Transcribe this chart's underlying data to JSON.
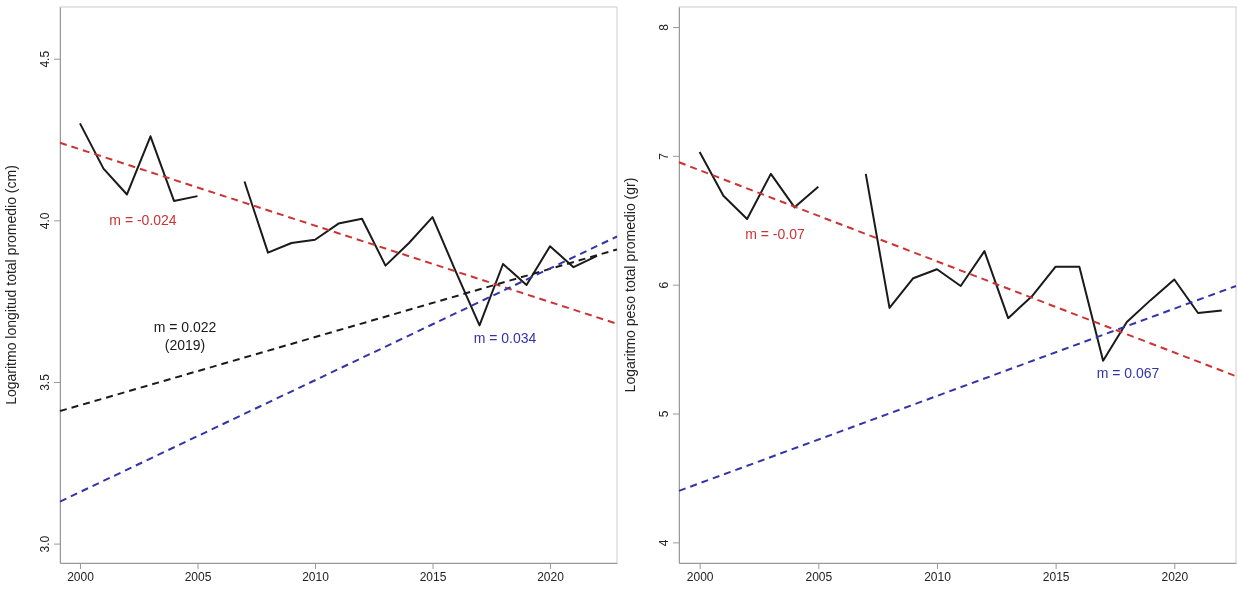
{
  "chart_data": [
    {
      "type": "line",
      "ylabel": "Logaritmo longitud total promedio (cm)",
      "x": [
        2000,
        2001,
        2002,
        2003,
        2004,
        2005,
        2006,
        2007,
        2008,
        2009,
        2010,
        2011,
        2012,
        2013,
        2014,
        2015,
        2016,
        2017,
        2018,
        2019,
        2020,
        2021,
        2022
      ],
      "series": [
        {
          "color": "#1a1a1a",
          "line_style": "solid",
          "values": [
            4.3,
            4.16,
            4.08,
            4.26,
            4.06,
            4.075,
            null,
            4.12,
            3.9,
            3.93,
            3.94,
            3.99,
            4.005,
            3.86,
            3.93,
            4.01,
            3.84,
            3.675,
            3.865,
            3.8,
            3.92,
            3.855,
            3.89
          ]
        },
        {
          "color": "#cc3333",
          "line_style": "dashed",
          "x": [
            1999.15,
            2022.85
          ],
          "values": [
            4.24,
            3.68
          ]
        },
        {
          "color": "#1a1a1a",
          "line_style": "dashed",
          "x": [
            1999.15,
            2022.85
          ],
          "values": [
            3.41,
            3.91
          ]
        },
        {
          "color": "#3333aa",
          "line_style": "dashed",
          "x": [
            1999.15,
            2022.85
          ],
          "values": [
            3.13,
            3.95
          ]
        }
      ],
      "annotations": [
        "m = -0.024",
        "m = 0.022\n(2019)",
        "m = 0.034"
      ],
      "xlim": [
        1999.15,
        2022.85
      ],
      "xticks": [
        2000,
        2005,
        2010,
        2015,
        2020
      ],
      "ylim": [
        2.94,
        4.66
      ],
      "yticks": [
        {
          "value": 3,
          "label": "3.0"
        },
        {
          "value": 3.5,
          "label": "3.5"
        },
        {
          "value": 4,
          "label": "4.0"
        },
        {
          "value": 4.5,
          "label": "4.5"
        }
      ]
    },
    {
      "type": "line",
      "ylabel": "Logaritmo peso total promedio (gr)",
      "x": [
        2000,
        2001,
        2002,
        2003,
        2004,
        2005,
        2006,
        2007,
        2008,
        2009,
        2010,
        2011,
        2012,
        2013,
        2014,
        2015,
        2016,
        2017,
        2018,
        2019,
        2020,
        2021,
        2022
      ],
      "series": [
        {
          "color": "#1a1a1a",
          "line_style": "solid",
          "values": [
            7.03,
            6.69,
            6.51,
            6.86,
            6.6,
            6.76,
            null,
            6.86,
            5.82,
            6.05,
            6.12,
            5.99,
            6.26,
            5.74,
            5.91,
            6.14,
            6.14,
            5.41,
            5.71,
            5.88,
            6.04,
            5.78,
            5.8
          ]
        },
        {
          "color": "#cc3333",
          "line_style": "dashed",
          "x": [
            1999.13,
            2022.6
          ],
          "values": [
            6.95,
            5.29
          ]
        },
        {
          "color": "#3333aa",
          "line_style": "dashed",
          "x": [
            1999.13,
            2022.6
          ],
          "values": [
            4.4,
            5.99
          ]
        }
      ],
      "annotations": [
        "m = -0.07",
        "m = 0.067"
      ],
      "xlim": [
        1999.13,
        2022.6
      ],
      "xticks": [
        2000,
        2005,
        2010,
        2015,
        2020
      ],
      "ylim": [
        3.84,
        8.155
      ],
      "yticks": [
        4,
        5,
        6,
        7,
        8
      ]
    }
  ]
}
